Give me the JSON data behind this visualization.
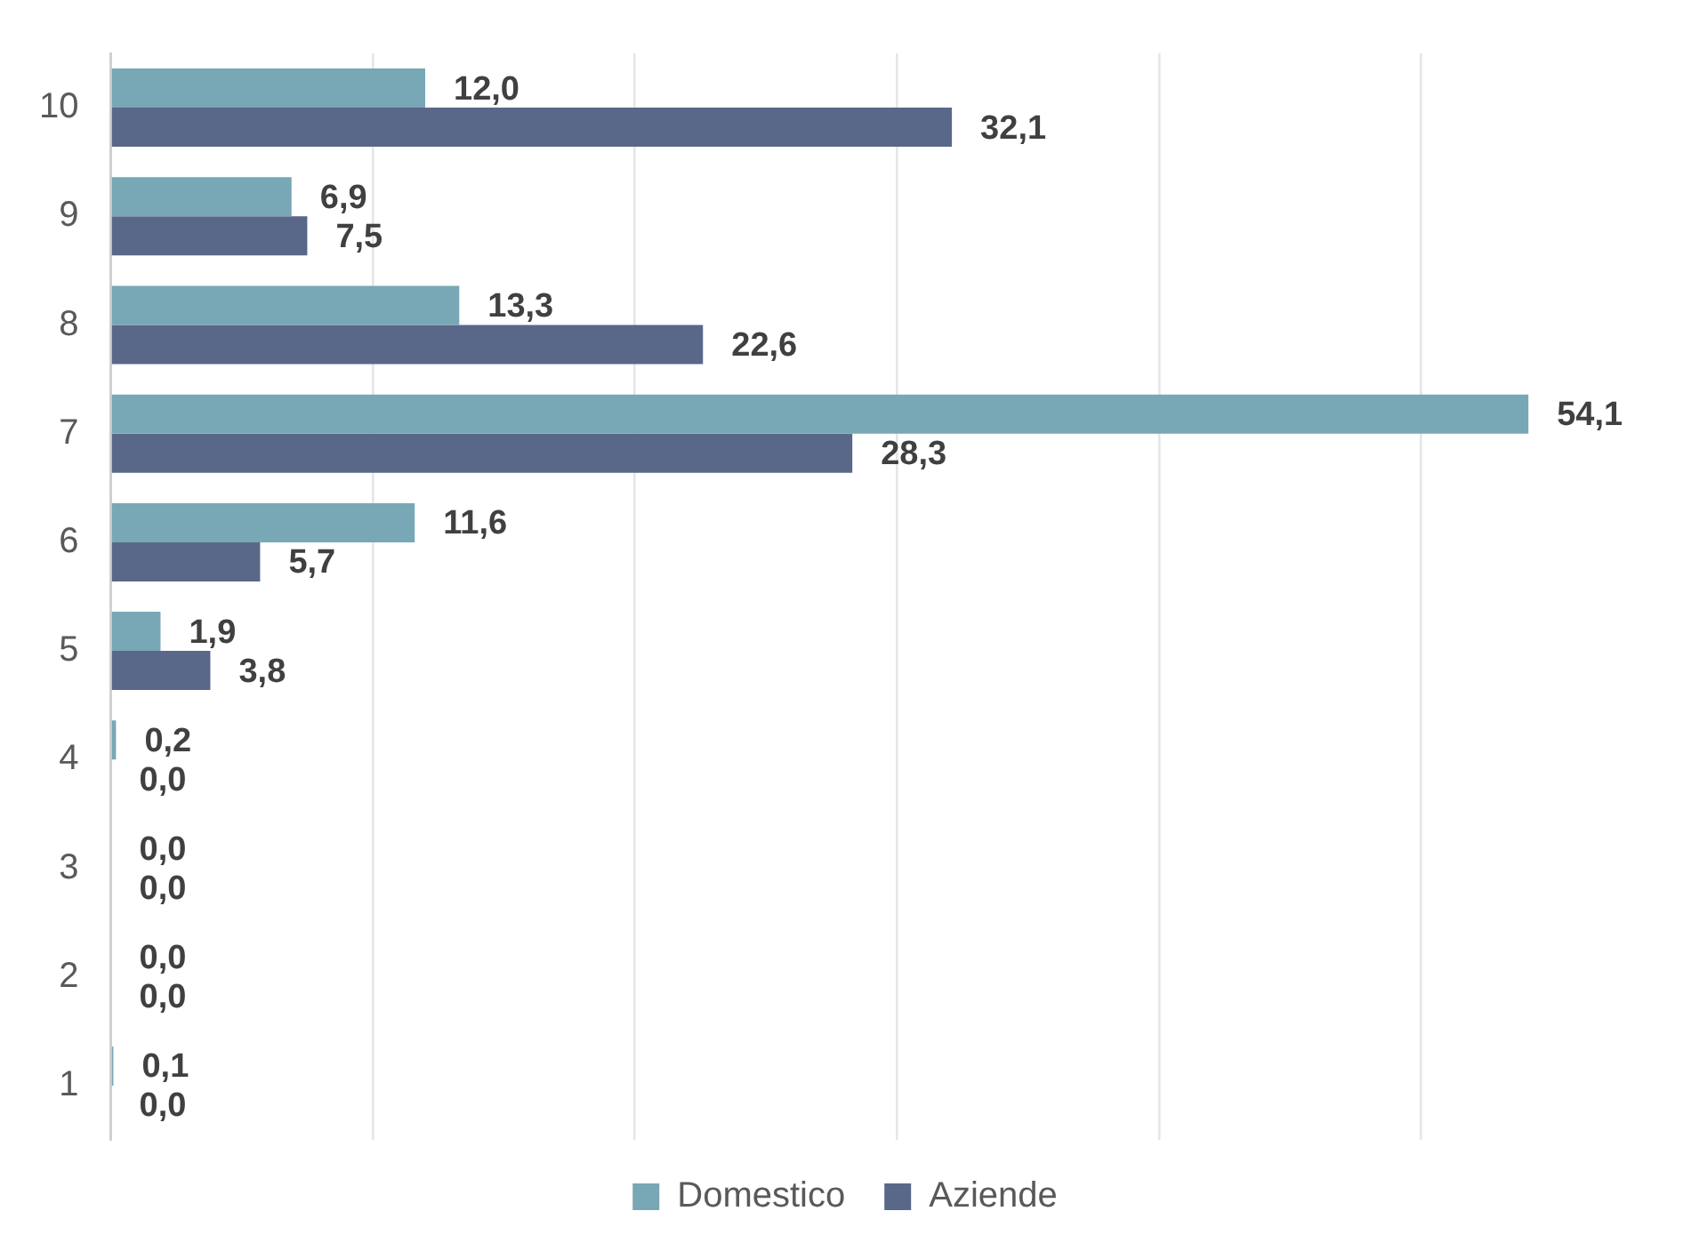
{
  "chart_data": {
    "type": "bar",
    "orientation": "horizontal",
    "categories": [
      "10",
      "9",
      "8",
      "7",
      "6",
      "5",
      "4",
      "3",
      "2",
      "1"
    ],
    "series": [
      {
        "name": "Domestico",
        "color": "#78a7b5",
        "values": [
          12.0,
          6.9,
          13.3,
          54.1,
          11.6,
          1.9,
          0.2,
          0.0,
          0.0,
          0.1
        ],
        "value_labels": [
          "12,0",
          "6,9",
          "13,3",
          "54,1",
          "11,6",
          "1,9",
          "0,2",
          "0,0",
          "0,0",
          "0,1"
        ]
      },
      {
        "name": "Aziende",
        "color": "#596889",
        "values": [
          32.1,
          7.5,
          22.6,
          28.3,
          5.7,
          3.8,
          0.0,
          0.0,
          0.0,
          0.0
        ],
        "value_labels": [
          "32,1",
          "7,5",
          "22,6",
          "28,3",
          "5,7",
          "3,8",
          "0,0",
          "0,0",
          "0,0",
          "0,0"
        ]
      }
    ],
    "xticks": [
      {
        "value": 0,
        "label": null
      },
      {
        "value": 10,
        "label": null
      },
      {
        "value": 20,
        "label": null
      },
      {
        "value": 30,
        "label": null
      },
      {
        "value": 40,
        "label": null
      },
      {
        "value": 50,
        "label": null
      }
    ],
    "grid": "x",
    "legend": "bottom",
    "tick_labels": "y"
  }
}
